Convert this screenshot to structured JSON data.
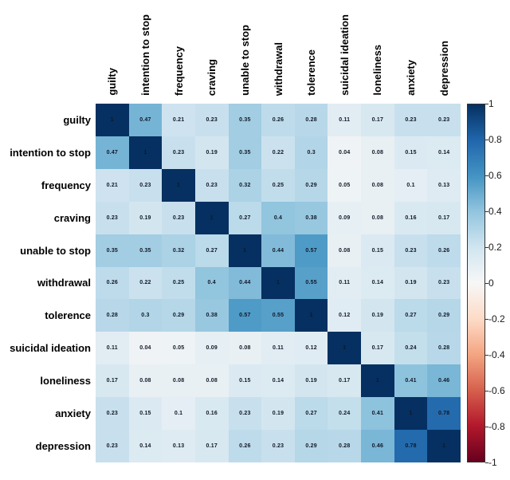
{
  "chart_data": {
    "type": "heatmap",
    "title": "",
    "xlabel": "",
    "ylabel": "",
    "categories": [
      "guilty",
      "intention to stop",
      "frequency",
      "craving",
      "unable to stop",
      "withdrawal",
      "tolerence",
      "suicidal ideation",
      "loneliness",
      "anxiety",
      "depression"
    ],
    "matrix": [
      [
        1,
        0.47,
        0.21,
        0.23,
        0.35,
        0.26,
        0.28,
        0.11,
        0.17,
        0.23,
        0.23
      ],
      [
        0.47,
        1,
        0.23,
        0.19,
        0.35,
        0.22,
        0.3,
        0.04,
        0.08,
        0.15,
        0.14
      ],
      [
        0.21,
        0.23,
        1,
        0.23,
        0.32,
        0.25,
        0.29,
        0.05,
        0.08,
        0.1,
        0.13
      ],
      [
        0.23,
        0.19,
        0.23,
        1,
        0.27,
        0.4,
        0.38,
        0.09,
        0.08,
        0.16,
        0.17
      ],
      [
        0.35,
        0.35,
        0.32,
        0.27,
        1,
        0.44,
        0.57,
        0.08,
        0.15,
        0.23,
        0.26
      ],
      [
        0.26,
        0.22,
        0.25,
        0.4,
        0.44,
        1,
        0.55,
        0.11,
        0.14,
        0.19,
        0.23
      ],
      [
        0.28,
        0.3,
        0.29,
        0.38,
        0.57,
        0.55,
        1,
        0.12,
        0.19,
        0.27,
        0.29
      ],
      [
        0.11,
        0.04,
        0.05,
        0.09,
        0.08,
        0.11,
        0.12,
        1,
        0.17,
        0.24,
        0.28
      ],
      [
        0.17,
        0.08,
        0.08,
        0.08,
        0.15,
        0.14,
        0.19,
        0.17,
        1,
        0.41,
        0.46
      ],
      [
        0.23,
        0.15,
        0.1,
        0.16,
        0.23,
        0.19,
        0.27,
        0.24,
        0.41,
        1,
        0.78
      ],
      [
        0.23,
        0.14,
        0.13,
        0.17,
        0.26,
        0.23,
        0.29,
        0.28,
        0.46,
        0.78,
        1
      ]
    ],
    "colorbar": {
      "min": -1,
      "max": 1,
      "ticks": [
        "1",
        "0.8",
        "0.6",
        "0.4",
        "0.2",
        "0",
        "-0.2",
        "-0.4",
        "-0.6",
        "-0.8",
        "-1"
      ],
      "colormap_name": "RdBu",
      "colormap_stops": [
        {
          "value": -1,
          "color": "#67001f"
        },
        {
          "value": -0.8,
          "color": "#b2182b"
        },
        {
          "value": -0.6,
          "color": "#d6604d"
        },
        {
          "value": -0.4,
          "color": "#f4a582"
        },
        {
          "value": -0.2,
          "color": "#fddbc7"
        },
        {
          "value": 0,
          "color": "#f7f7f7"
        },
        {
          "value": 0.2,
          "color": "#d1e5f0"
        },
        {
          "value": 0.4,
          "color": "#92c5de"
        },
        {
          "value": 0.6,
          "color": "#4393c3"
        },
        {
          "value": 0.8,
          "color": "#2166ac"
        },
        {
          "value": 1,
          "color": "#053061"
        }
      ]
    },
    "layout": {
      "grid": false,
      "legend_position": "right-colorbar",
      "cell_text_color": "#111827",
      "label_color": "#000000"
    }
  }
}
